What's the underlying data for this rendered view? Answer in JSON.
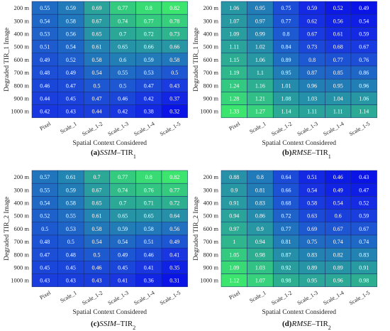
{
  "chart_data": [
    {
      "type": "heatmap",
      "caption": {
        "letter": "(a)",
        "metric": "SSIM",
        "rest": "–TIR",
        "sub": "1"
      },
      "xlabel": "Spatial Context Considered",
      "ylabel": "Degraded TIR_1 Image",
      "colormap": "blue-low-green-high",
      "x": [
        "Pixel",
        "Scale_1",
        "Scale_1-2",
        "Scale_1-3",
        "Scale_1-4",
        "Scale_1-5"
      ],
      "y": [
        "200 m",
        "300 m",
        "400 m",
        "500 m",
        "600 m",
        "700 m",
        "800 m",
        "900 m",
        "1000 m"
      ],
      "values": [
        [
          0.55,
          0.59,
          0.69,
          0.77,
          0.8,
          0.82
        ],
        [
          0.54,
          0.58,
          0.67,
          0.74,
          0.77,
          0.78
        ],
        [
          0.53,
          0.56,
          0.65,
          0.7,
          0.72,
          0.73
        ],
        [
          0.51,
          0.54,
          0.61,
          0.65,
          0.66,
          0.66
        ],
        [
          0.49,
          0.52,
          0.58,
          0.6,
          0.59,
          0.58
        ],
        [
          0.48,
          0.49,
          0.54,
          0.55,
          0.53,
          0.5
        ],
        [
          0.46,
          0.47,
          0.5,
          0.5,
          0.47,
          0.43
        ],
        [
          0.44,
          0.45,
          0.47,
          0.46,
          0.42,
          0.37
        ],
        [
          0.42,
          0.43,
          0.44,
          0.42,
          0.38,
          0.32
        ]
      ]
    },
    {
      "type": "heatmap",
      "caption": {
        "letter": "(b)",
        "metric": "RMSE",
        "rest": "–TIR",
        "sub": "1"
      },
      "xlabel": "Spatial Context Considered",
      "ylabel": "Degraded TIR_1 Image",
      "colormap": "green-high-blue-low",
      "x": [
        "Pixel",
        "Scale_1",
        "Scale_1-2",
        "Scale_1-3",
        "Scale_1-4",
        "Scale_1-5"
      ],
      "y": [
        "200 m",
        "300 m",
        "400 m",
        "500 m",
        "600 m",
        "700 m",
        "800 m",
        "900 m",
        "1000 m"
      ],
      "values": [
        [
          1.06,
          0.95,
          0.75,
          0.59,
          0.52,
          0.49
        ],
        [
          1.07,
          0.97,
          0.77,
          0.62,
          0.56,
          0.54
        ],
        [
          1.09,
          0.99,
          0.8,
          0.67,
          0.61,
          0.59
        ],
        [
          1.11,
          1.02,
          0.84,
          0.73,
          0.68,
          0.67
        ],
        [
          1.15,
          1.06,
          0.89,
          0.8,
          0.77,
          0.76
        ],
        [
          1.19,
          1.1,
          0.95,
          0.87,
          0.85,
          0.86
        ],
        [
          1.24,
          1.16,
          1.01,
          0.96,
          0.95,
          0.96
        ],
        [
          1.28,
          1.21,
          1.08,
          1.03,
          1.04,
          1.06
        ],
        [
          1.33,
          1.27,
          1.14,
          1.11,
          1.11,
          1.14
        ]
      ]
    },
    {
      "type": "heatmap",
      "caption": {
        "letter": "(c)",
        "metric": "SSIM",
        "rest": "–TIR",
        "sub": "2"
      },
      "xlabel": "Spatial Context Considered",
      "ylabel": "Degraded TIR_2 Image",
      "colormap": "blue-low-green-high",
      "x": [
        "Pixel",
        "Scale_1",
        "Scale_1-2",
        "Scale_1-3",
        "Scale_1-4",
        "Scale_1-5"
      ],
      "y": [
        "200 m",
        "300 m",
        "400 m",
        "500 m",
        "600 m",
        "700 m",
        "800 m",
        "900 m",
        "1000 m"
      ],
      "values": [
        [
          0.57,
          0.61,
          0.7,
          0.77,
          0.8,
          0.82
        ],
        [
          0.55,
          0.59,
          0.67,
          0.74,
          0.76,
          0.77
        ],
        [
          0.54,
          0.58,
          0.65,
          0.7,
          0.71,
          0.72
        ],
        [
          0.52,
          0.55,
          0.61,
          0.65,
          0.65,
          0.64
        ],
        [
          0.5,
          0.53,
          0.58,
          0.59,
          0.58,
          0.56
        ],
        [
          0.48,
          0.5,
          0.54,
          0.54,
          0.51,
          0.49
        ],
        [
          0.47,
          0.48,
          0.5,
          0.49,
          0.46,
          0.41
        ],
        [
          0.45,
          0.45,
          0.46,
          0.45,
          0.41,
          0.35
        ],
        [
          0.43,
          0.43,
          0.43,
          0.41,
          0.36,
          0.31
        ]
      ]
    },
    {
      "type": "heatmap",
      "caption": {
        "letter": "(d)",
        "metric": "RMSE",
        "rest": "–TIR",
        "sub": "2"
      },
      "xlabel": "Spatial Context Considered",
      "ylabel": "Degraded TIR_2 Image",
      "colormap": "green-high-blue-low",
      "x": [
        "Pixel",
        "Scale_1",
        "Scale_1-2",
        "Scale_1-3",
        "Scale_1-4",
        "Scale_1-5"
      ],
      "y": [
        "200 m",
        "300 m",
        "400 m",
        "500 m",
        "600 m",
        "700 m",
        "800 m",
        "900 m",
        "1000 m"
      ],
      "values": [
        [
          0.88,
          0.8,
          0.64,
          0.51,
          0.46,
          0.43
        ],
        [
          0.9,
          0.81,
          0.66,
          0.54,
          0.49,
          0.47
        ],
        [
          0.91,
          0.83,
          0.68,
          0.58,
          0.54,
          0.52
        ],
        [
          0.94,
          0.86,
          0.72,
          0.63,
          0.6,
          0.59
        ],
        [
          0.97,
          0.9,
          0.77,
          0.69,
          0.67,
          0.67
        ],
        [
          1,
          0.94,
          0.81,
          0.75,
          0.74,
          0.74
        ],
        [
          1.05,
          0.98,
          0.87,
          0.83,
          0.82,
          0.83
        ],
        [
          1.09,
          1.03,
          0.92,
          0.89,
          0.89,
          0.91
        ],
        [
          1.12,
          1.07,
          0.98,
          0.95,
          0.96,
          0.98
        ]
      ]
    }
  ]
}
